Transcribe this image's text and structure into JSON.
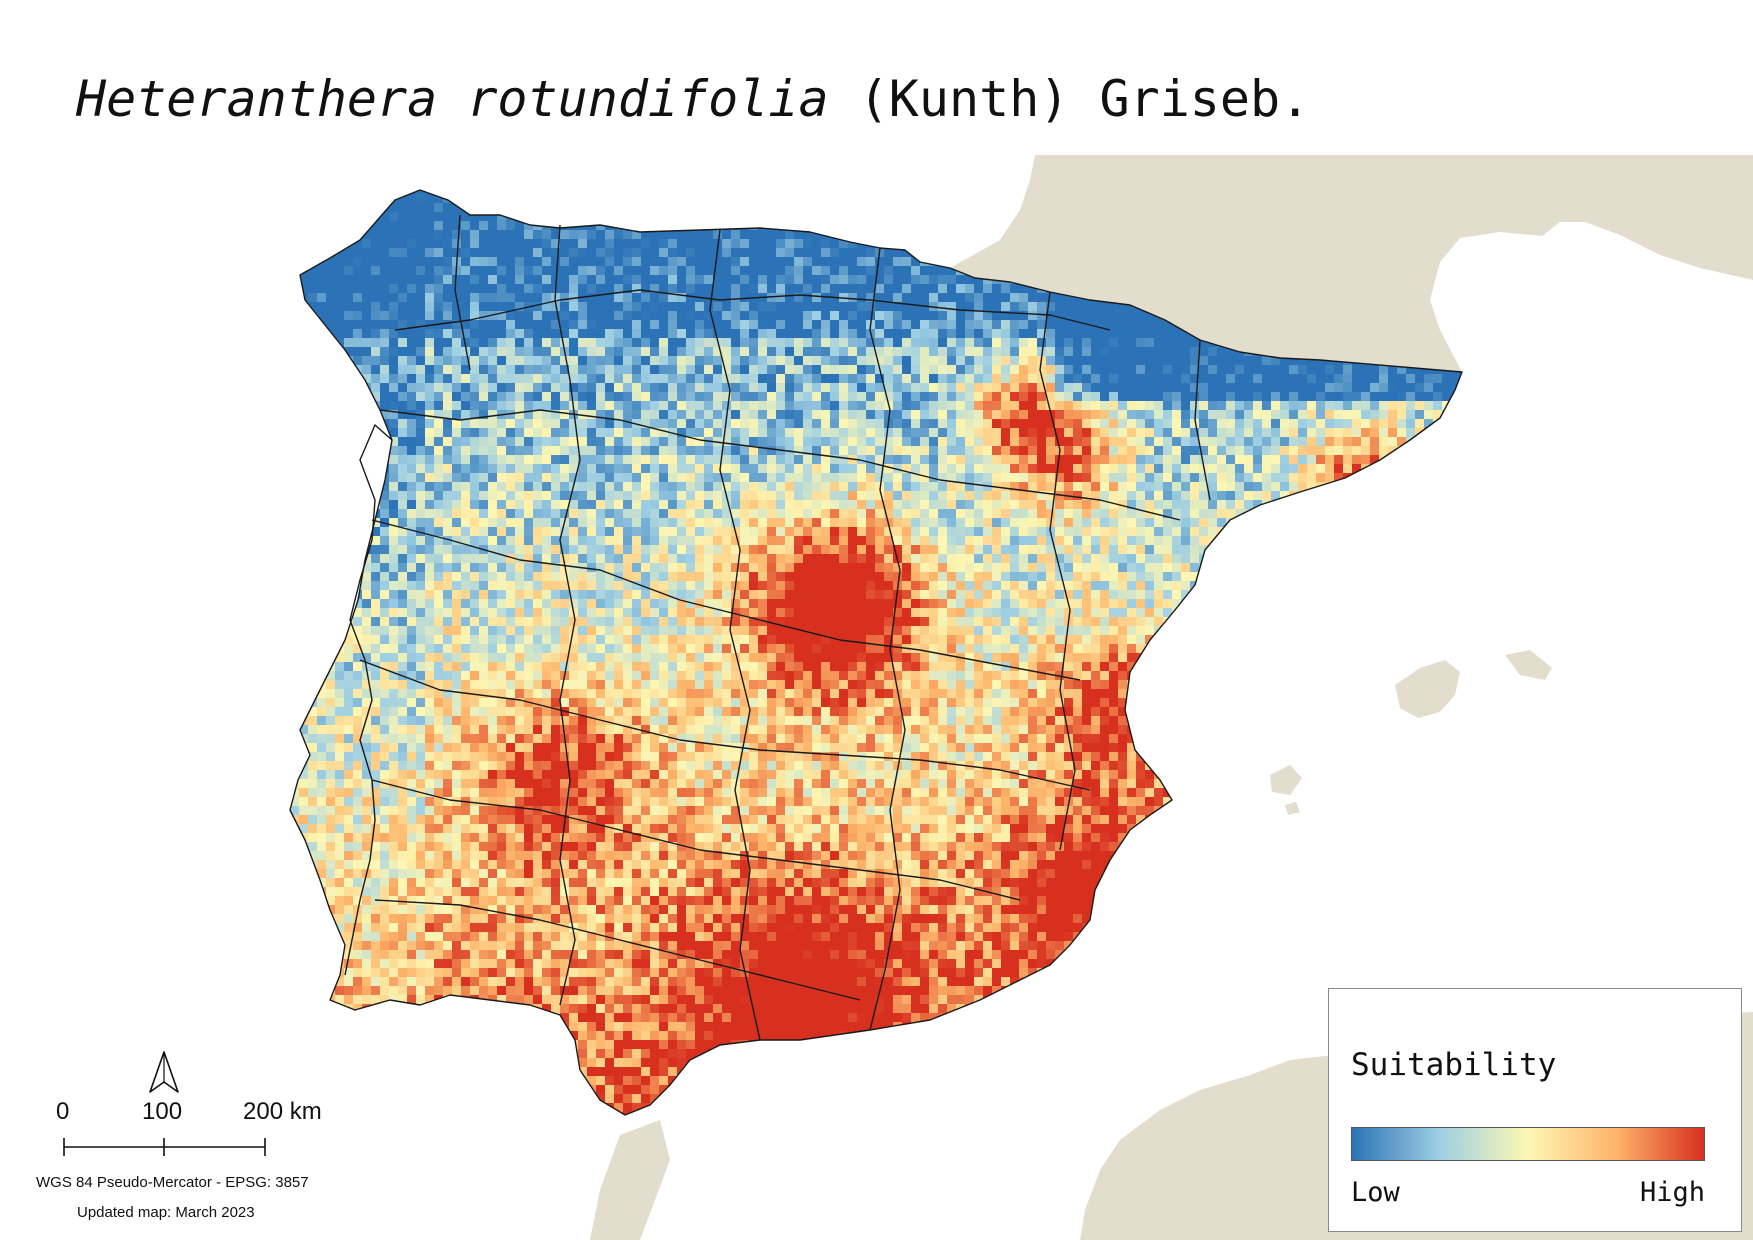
{
  "title": {
    "species_italic": "Heteranthera rotundifolia",
    "authority": " (Kunth) Griseb."
  },
  "legend": {
    "title": "Suitability",
    "low_label": "Low",
    "high_label": "High",
    "ramp_colors": [
      "#2b73b6",
      "#9fcfe3",
      "#fdf7b3",
      "#fdb46a",
      "#d7301f"
    ]
  },
  "scalebar": {
    "labels": [
      "0",
      "100",
      "200 km"
    ],
    "values_km": [
      0,
      100,
      200
    ]
  },
  "crs_text": "WGS 84 Pseudo-Mercator  - EPSG: 3857",
  "updated_text": "Updated map: March 2023",
  "colors": {
    "land": "#e3ddce",
    "sea": "#ffffff",
    "border": "#1a1a1a"
  },
  "icons": {
    "north_arrow": "north-arrow-icon"
  }
}
